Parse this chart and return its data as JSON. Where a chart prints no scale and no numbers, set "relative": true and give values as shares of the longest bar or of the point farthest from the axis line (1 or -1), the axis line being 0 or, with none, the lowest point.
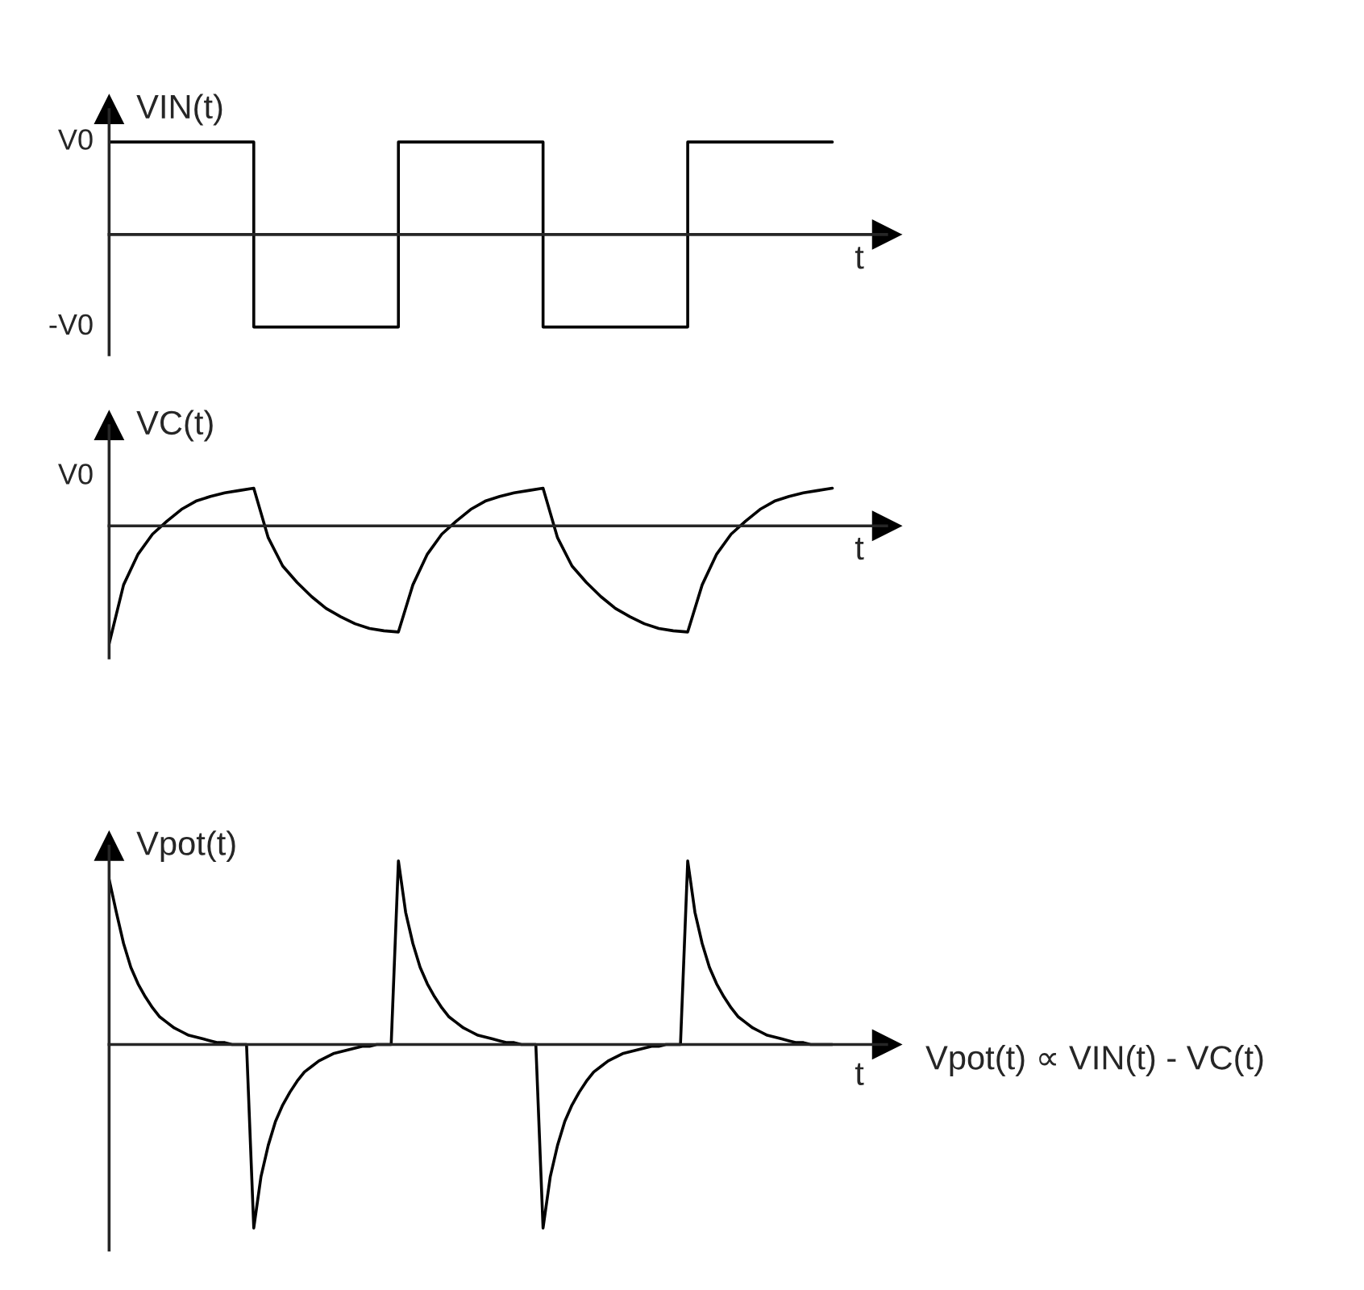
{
  "chart_data": [
    {
      "type": "step",
      "ylabel": "VIN(t)",
      "xlabel": "t",
      "categories": [
        null,
        null,
        null,
        null,
        null,
        null
      ],
      "relative": true,
      "annotations": [
        "V0",
        "-V0"
      ],
      "series": [
        {
          "color": "#000000",
          "values": [
            1,
            -1,
            1,
            -1,
            1,
            1
          ]
        }
      ]
    },
    {
      "type": "line",
      "ylabel": "VC(t)",
      "xlabel": "t",
      "relative": true,
      "annotations": [
        "V0"
      ],
      "categories": [
        null,
        null,
        null,
        null,
        null,
        null,
        null,
        null,
        null,
        null,
        null,
        null,
        null,
        null,
        null,
        null,
        null,
        null,
        null,
        null,
        null,
        null,
        null,
        null,
        null,
        null,
        null,
        null,
        null,
        null,
        null,
        null,
        null,
        null,
        null,
        null,
        null,
        null,
        null,
        null,
        null,
        null,
        null,
        null,
        null,
        null,
        null,
        null,
        null,
        null,
        null
      ],
      "series": [
        {
          "color": "#000000",
          "values": [
            -1,
            -0.5,
            -0.24,
            -0.07,
            0.04,
            0.14,
            0.21,
            0.25,
            0.28,
            0.3,
            0.32,
            -0.1,
            -0.34,
            -0.48,
            -0.6,
            -0.7,
            -0.77,
            -0.83,
            -0.87,
            -0.89,
            -0.9,
            -0.5,
            -0.24,
            -0.07,
            0.04,
            0.14,
            0.21,
            0.25,
            0.28,
            0.3,
            0.32,
            -0.1,
            -0.34,
            -0.48,
            -0.6,
            -0.7,
            -0.77,
            -0.83,
            -0.87,
            -0.89,
            -0.9,
            -0.5,
            -0.24,
            -0.07,
            0.04,
            0.14,
            0.21,
            0.25,
            0.28,
            0.3,
            0.32
          ]
        }
      ]
    },
    {
      "type": "line",
      "ylabel": "Vpot(t)",
      "xlabel": "t",
      "relative": true,
      "annotations": [
        "Vpot(t) ∝ VIN(t) - VC(t)"
      ],
      "categories": [
        null,
        null,
        null,
        null,
        null,
        null,
        null,
        null,
        null,
        null,
        null,
        null,
        null,
        null,
        null,
        null,
        null,
        null,
        null,
        null,
        null,
        null,
        null,
        null,
        null,
        null,
        null,
        null,
        null,
        null,
        null,
        null,
        null,
        null,
        null,
        null,
        null,
        null,
        null,
        null,
        null,
        null,
        null,
        null,
        null,
        null,
        null,
        null,
        null,
        null,
        null,
        null,
        null,
        null,
        null,
        null,
        null,
        null,
        null,
        null,
        null,
        null,
        null,
        null,
        null,
        null,
        null,
        null,
        null,
        null,
        null,
        null,
        null,
        null,
        null,
        null,
        null,
        null,
        null,
        null,
        null,
        null,
        null,
        null,
        null,
        null,
        null,
        null,
        null,
        null,
        null,
        null,
        null,
        null,
        null,
        null,
        null,
        null,
        null,
        null,
        null
      ],
      "series": [
        {
          "color": "#000000",
          "values": [
            0.9,
            0.72,
            0.55,
            0.42,
            0.33,
            0.26,
            0.2,
            0.15,
            0.12,
            0.09,
            0.07,
            0.05,
            0.04,
            0.03,
            0.02,
            0.01,
            0.01,
            0,
            0,
            0,
            -1,
            -0.72,
            -0.55,
            -0.42,
            -0.33,
            -0.26,
            -0.2,
            -0.15,
            -0.12,
            -0.09,
            -0.07,
            -0.05,
            -0.04,
            -0.03,
            -0.02,
            -0.01,
            -0.01,
            0,
            0,
            0,
            1,
            0.72,
            0.55,
            0.42,
            0.33,
            0.26,
            0.2,
            0.15,
            0.12,
            0.09,
            0.07,
            0.05,
            0.04,
            0.03,
            0.02,
            0.01,
            0.01,
            0,
            0,
            0,
            -1,
            -0.72,
            -0.55,
            -0.42,
            -0.33,
            -0.26,
            -0.2,
            -0.15,
            -0.12,
            -0.09,
            -0.07,
            -0.05,
            -0.04,
            -0.03,
            -0.02,
            -0.01,
            -0.01,
            0,
            0,
            0,
            1,
            0.72,
            0.55,
            0.42,
            0.33,
            0.26,
            0.2,
            0.15,
            0.12,
            0.09,
            0.07,
            0.05,
            0.04,
            0.03,
            0.02,
            0.01,
            0.01,
            0,
            0,
            0,
            0
          ]
        }
      ]
    }
  ]
}
